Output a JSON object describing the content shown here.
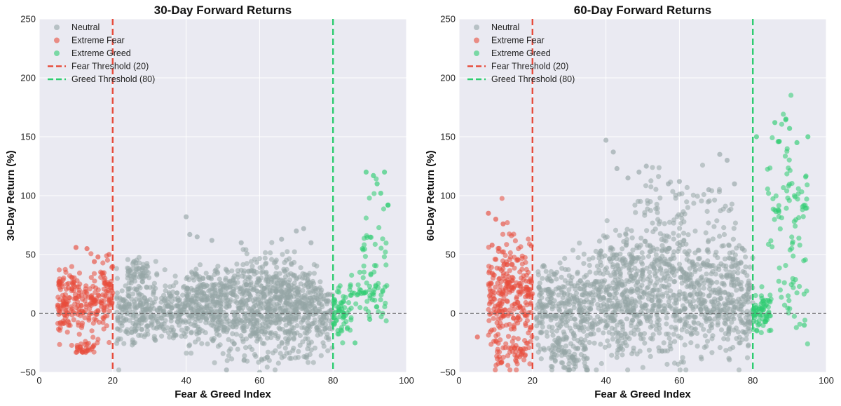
{
  "colors": {
    "neutral": "#95a5a6",
    "fear": "#e74c3c",
    "greed": "#2ecc71",
    "plot_bg": "#eaeaf2",
    "grid": "#ffffff",
    "zero_line": "#555555"
  },
  "chart_data": [
    {
      "type": "scatter",
      "title": "30-Day Forward Returns",
      "xlabel": "Fear & Greed Index",
      "ylabel": "30-Day Return (%)",
      "xlim": [
        0,
        100
      ],
      "ylim": [
        -50,
        250
      ],
      "xticks": [
        "0",
        "20",
        "40",
        "60",
        "80",
        "100"
      ],
      "yticks": [
        "−50",
        "0",
        "50",
        "100",
        "150",
        "200",
        "250"
      ],
      "grid": true,
      "legend_position": "top-left",
      "legend": [
        "Neutral",
        "Extreme Fear",
        "Extreme Greed",
        "Fear Threshold (20)",
        "Greed Threshold (80)"
      ],
      "thresholds": [
        {
          "name": "Fear Threshold (20)",
          "x": 20
        },
        {
          "name": "Greed Threshold (80)",
          "x": 80
        }
      ],
      "reference_line_y": 0,
      "series": [
        {
          "name": "Neutral",
          "x_range": [
            20,
            80
          ],
          "clusters": [
            {
              "x": [
                21,
                80
              ],
              "y_center": 0,
              "y_spread": 14,
              "count": 1100
            },
            {
              "x": [
                40,
                75
              ],
              "y_center": 20,
              "y_spread": 10,
              "count": 300
            },
            {
              "x": [
                24,
                30
              ],
              "y_center": 35,
              "y_spread": 6,
              "count": 60
            },
            {
              "x": [
                55,
                70
              ],
              "y_center": 45,
              "y_spread": 8,
              "count": 40
            },
            {
              "x": [
                45,
                75
              ],
              "y_center": -35,
              "y_spread": 6,
              "count": 45
            }
          ],
          "highlights": [
            [
              40,
              82
            ],
            [
              41,
              67
            ],
            [
              43,
              65
            ],
            [
              47,
              62
            ],
            [
              55,
              60
            ],
            [
              66,
              63
            ],
            [
              70,
              70
            ],
            [
              72,
              72
            ],
            [
              74,
              60
            ],
            [
              51,
              -48
            ],
            [
              60,
              -50
            ]
          ]
        },
        {
          "name": "Extreme Fear",
          "x_range": [
            5,
            20
          ],
          "clusters": [
            {
              "x": [
                5,
                20
              ],
              "y_center": 10,
              "y_spread": 15,
              "count": 260
            },
            {
              "x": [
                10,
                15
              ],
              "y_center": -30,
              "y_spread": 2.5,
              "count": 30
            }
          ],
          "highlights": [
            [
              10,
              56
            ],
            [
              13,
              55
            ],
            [
              16,
              48
            ],
            [
              19,
              50
            ],
            [
              15,
              44
            ],
            [
              8,
              -10
            ]
          ]
        },
        {
          "name": "Extreme Greed",
          "x_range": [
            80,
            95
          ],
          "clusters": [
            {
              "x": [
                80,
                85
              ],
              "y_center": 0,
              "y_spread": 12,
              "count": 60
            },
            {
              "x": [
                84,
                95
              ],
              "y_center": 15,
              "y_spread": 12,
              "count": 55
            },
            {
              "x": [
                88,
                95
              ],
              "y_center": 60,
              "y_spread": 25,
              "count": 30
            }
          ],
          "highlights": [
            [
              89,
              120
            ],
            [
              91,
              117
            ],
            [
              94,
              120
            ],
            [
              92,
              110
            ],
            [
              93,
              102
            ],
            [
              95,
              92
            ],
            [
              88,
              55
            ],
            [
              90,
              -5
            ],
            [
              86,
              -25
            ]
          ]
        }
      ]
    },
    {
      "type": "scatter",
      "title": "60-Day Forward Returns",
      "xlabel": "Fear & Greed Index",
      "ylabel": "60-Day Return (%)",
      "xlim": [
        0,
        100
      ],
      "ylim": [
        -50,
        250
      ],
      "xticks": [
        "0",
        "20",
        "40",
        "60",
        "80",
        "100"
      ],
      "yticks": [
        "−50",
        "0",
        "50",
        "100",
        "150",
        "200",
        "250"
      ],
      "grid": true,
      "legend_position": "top-left",
      "legend": [
        "Neutral",
        "Extreme Fear",
        "Extreme Greed",
        "Fear Threshold (20)",
        "Greed Threshold (80)"
      ],
      "thresholds": [
        {
          "name": "Fear Threshold (20)",
          "x": 20
        },
        {
          "name": "Greed Threshold (80)",
          "x": 80
        }
      ],
      "reference_line_y": 0,
      "series": [
        {
          "name": "Neutral",
          "x_range": [
            20,
            80
          ],
          "clusters": [
            {
              "x": [
                21,
                80
              ],
              "y_center": 5,
              "y_spread": 20,
              "count": 1100
            },
            {
              "x": [
                38,
                78
              ],
              "y_center": 45,
              "y_spread": 15,
              "count": 320
            },
            {
              "x": [
                25,
                35
              ],
              "y_center": -35,
              "y_spread": 8,
              "count": 80
            },
            {
              "x": [
                45,
                75
              ],
              "y_center": 95,
              "y_spread": 12,
              "count": 60
            }
          ],
          "highlights": [
            [
              40,
              147
            ],
            [
              42,
              137
            ],
            [
              43,
              123
            ],
            [
              46,
              115
            ],
            [
              49,
              120
            ],
            [
              51,
              125
            ],
            [
              57,
              110
            ],
            [
              60,
              112
            ],
            [
              68,
              105
            ],
            [
              71,
              135
            ],
            [
              73,
              130
            ],
            [
              75,
              110
            ],
            [
              30,
              -48
            ]
          ]
        },
        {
          "name": "Extreme Fear",
          "x_range": [
            5,
            20
          ],
          "clusters": [
            {
              "x": [
                8,
                20
              ],
              "y_center": 15,
              "y_spread": 25,
              "count": 280
            },
            {
              "x": [
                10,
                18
              ],
              "y_center": -35,
              "y_spread": 6,
              "count": 40
            }
          ],
          "highlights": [
            [
              8,
              85
            ],
            [
              10,
              80
            ],
            [
              12,
              76
            ],
            [
              9,
              58
            ],
            [
              5,
              -20
            ]
          ]
        },
        {
          "name": "Extreme Greed",
          "x_range": [
            80,
            95
          ],
          "clusters": [
            {
              "x": [
                80,
                85
              ],
              "y_center": 0,
              "y_spread": 10,
              "count": 70
            },
            {
              "x": [
                84,
                95
              ],
              "y_center": 100,
              "y_spread": 35,
              "count": 70
            },
            {
              "x": [
                86,
                95
              ],
              "y_center": 20,
              "y_spread": 20,
              "count": 30
            }
          ],
          "highlights": [
            [
              86,
              162
            ],
            [
              89,
              165
            ],
            [
              90,
              157
            ],
            [
              92,
              145
            ],
            [
              81,
              150
            ],
            [
              95,
              150
            ],
            [
              94,
              -10
            ]
          ]
        }
      ]
    }
  ]
}
